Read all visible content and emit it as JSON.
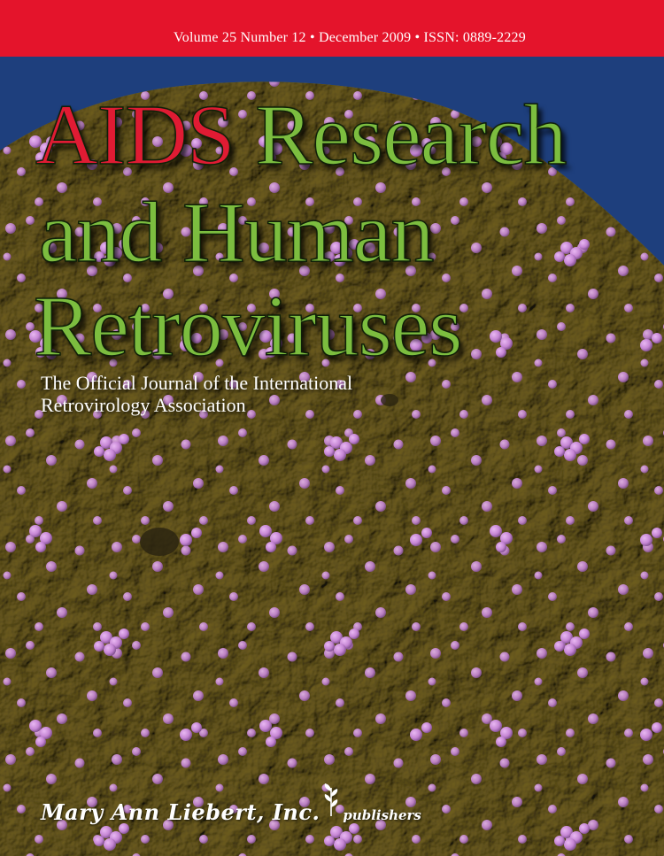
{
  "issue_line": "Volume 25 Number 12 • December 2009 • ISSN: 0889-2229",
  "title": {
    "word_red": "AIDS",
    "line1_rest": "Research",
    "line2": "and Human",
    "line3": "Retroviruses"
  },
  "subtitle": {
    "line1": "The Official Journal of the International",
    "line2": "Retrovirology Association"
  },
  "publisher": {
    "name": "Mary Ann Liebert, Inc.",
    "suffix": "publishers",
    "logo_icon": "plant-sprig-icon"
  },
  "colors": {
    "top_bar": "#e4142b",
    "sky": "#1e3f7d",
    "title_red": "#e01b33",
    "title_green": "#7cbd3f",
    "cell_surface": "#8c7f48",
    "virions": "#c48ad3"
  }
}
